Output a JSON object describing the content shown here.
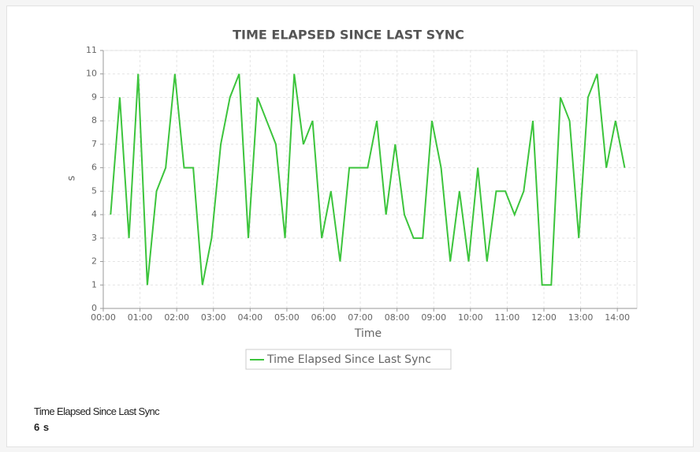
{
  "chart_data": {
    "type": "line",
    "title": "TIME ELAPSED SINCE LAST SYNC",
    "x_label": "Time",
    "y_label": "s",
    "x": [
      12,
      27,
      42,
      57,
      72,
      87,
      102,
      117,
      132,
      147,
      162,
      177,
      192,
      207,
      222,
      237,
      252,
      267,
      282,
      297,
      312,
      327,
      342,
      357,
      372,
      387,
      402,
      417,
      432,
      447,
      462,
      477,
      492,
      507,
      522,
      537,
      552,
      567,
      582,
      597,
      612,
      627,
      642,
      657,
      672,
      687,
      702,
      717,
      732,
      747,
      762,
      777,
      792,
      807,
      822,
      837,
      852
    ],
    "series": [
      {
        "name": "Time Elapsed Since Last Sync",
        "color": "#3cc43c",
        "values": [
          4,
          9,
          3,
          10,
          1,
          5,
          6,
          10,
          6,
          6,
          1,
          3,
          7,
          9,
          10,
          3,
          9,
          8,
          7,
          3,
          10,
          7,
          8,
          3,
          5,
          2,
          6,
          6,
          6,
          8,
          4,
          7,
          4,
          3,
          3,
          8,
          6,
          2,
          5,
          2,
          6,
          2,
          5,
          5,
          4,
          5,
          8,
          1,
          1,
          9,
          8,
          3,
          9,
          10,
          6,
          8,
          6
        ]
      }
    ],
    "xlim": [
      0,
      872
    ],
    "xticks": [
      {
        "value": 0,
        "label": "00:00"
      },
      {
        "value": 60,
        "label": "01:00"
      },
      {
        "value": 120,
        "label": "02:00"
      },
      {
        "value": 180,
        "label": "03:00"
      },
      {
        "value": 240,
        "label": "04:00"
      },
      {
        "value": 300,
        "label": "05:00"
      },
      {
        "value": 360,
        "label": "06:00"
      },
      {
        "value": 420,
        "label": "07:00"
      },
      {
        "value": 480,
        "label": "08:00"
      },
      {
        "value": 540,
        "label": "09:00"
      },
      {
        "value": 600,
        "label": "10:00"
      },
      {
        "value": 660,
        "label": "11:00"
      },
      {
        "value": 720,
        "label": "12:00"
      },
      {
        "value": 780,
        "label": "13:00"
      },
      {
        "value": 840,
        "label": "14:00"
      }
    ],
    "ylim": [
      0,
      11
    ],
    "yticks": [
      0,
      1,
      2,
      3,
      4,
      5,
      6,
      7,
      8,
      9,
      10,
      11
    ],
    "grid": true
  },
  "widget": {
    "label": "Time Elapsed Since Last Sync",
    "value": "6 s"
  }
}
